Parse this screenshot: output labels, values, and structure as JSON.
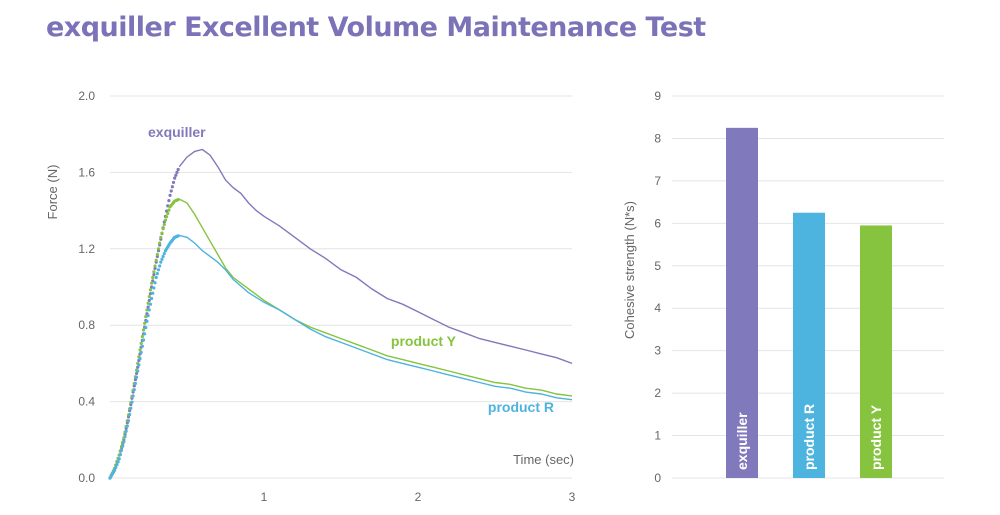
{
  "title": "exquiller Excellent Volume Maintenance Test",
  "colors": {
    "title": "#7b72b8",
    "exquiller": "#8079bb",
    "product_R": "#4db3df",
    "product_Y": "#86c33e",
    "grid": "#e4e4e4"
  },
  "chart_data": [
    {
      "type": "line",
      "xlabel": "Time (sec)",
      "ylabel": "Force (N)",
      "xlim": [
        0,
        3
      ],
      "ylim": [
        0,
        2
      ],
      "x_ticks": [
        1,
        2,
        3
      ],
      "y_ticks": [
        "0.0",
        "0.4",
        "0.8",
        "1.2",
        "1.6",
        "2.0"
      ],
      "grid": true,
      "series": [
        {
          "name": "exquiller",
          "color": "#8079bb",
          "points": [
            [
              0,
              0
            ],
            [
              0.03,
              0.05
            ],
            [
              0.06,
              0.12
            ],
            [
              0.09,
              0.2
            ],
            [
              0.12,
              0.32
            ],
            [
              0.15,
              0.45
            ],
            [
              0.18,
              0.58
            ],
            [
              0.21,
              0.72
            ],
            [
              0.24,
              0.86
            ],
            [
              0.27,
              1.0
            ],
            [
              0.3,
              1.13
            ],
            [
              0.33,
              1.25
            ],
            [
              0.36,
              1.37
            ],
            [
              0.39,
              1.48
            ],
            [
              0.42,
              1.57
            ],
            [
              0.45,
              1.63
            ],
            [
              0.5,
              1.68
            ],
            [
              0.55,
              1.71
            ],
            [
              0.6,
              1.72
            ],
            [
              0.65,
              1.69
            ],
            [
              0.7,
              1.63
            ],
            [
              0.75,
              1.56
            ],
            [
              0.8,
              1.52
            ],
            [
              0.85,
              1.49
            ],
            [
              0.9,
              1.44
            ],
            [
              0.95,
              1.4
            ],
            [
              1.0,
              1.37
            ],
            [
              1.1,
              1.32
            ],
            [
              1.2,
              1.26
            ],
            [
              1.3,
              1.2
            ],
            [
              1.4,
              1.15
            ],
            [
              1.5,
              1.09
            ],
            [
              1.6,
              1.05
            ],
            [
              1.7,
              0.99
            ],
            [
              1.8,
              0.94
            ],
            [
              1.9,
              0.91
            ],
            [
              2.0,
              0.87
            ],
            [
              2.1,
              0.83
            ],
            [
              2.2,
              0.79
            ],
            [
              2.3,
              0.76
            ],
            [
              2.4,
              0.73
            ],
            [
              2.5,
              0.71
            ],
            [
              2.6,
              0.69
            ],
            [
              2.7,
              0.67
            ],
            [
              2.8,
              0.65
            ],
            [
              2.9,
              0.63
            ],
            [
              3.0,
              0.6
            ]
          ]
        },
        {
          "name": "product Y",
          "color": "#86c33e",
          "points": [
            [
              0,
              0
            ],
            [
              0.03,
              0.05
            ],
            [
              0.06,
              0.12
            ],
            [
              0.09,
              0.21
            ],
            [
              0.12,
              0.33
            ],
            [
              0.15,
              0.46
            ],
            [
              0.18,
              0.6
            ],
            [
              0.21,
              0.74
            ],
            [
              0.24,
              0.88
            ],
            [
              0.27,
              1.02
            ],
            [
              0.3,
              1.14
            ],
            [
              0.33,
              1.26
            ],
            [
              0.36,
              1.35
            ],
            [
              0.39,
              1.42
            ],
            [
              0.42,
              1.45
            ],
            [
              0.45,
              1.46
            ],
            [
              0.5,
              1.44
            ],
            [
              0.55,
              1.38
            ],
            [
              0.6,
              1.31
            ],
            [
              0.65,
              1.24
            ],
            [
              0.7,
              1.17
            ],
            [
              0.75,
              1.1
            ],
            [
              0.8,
              1.05
            ],
            [
              0.9,
              0.99
            ],
            [
              1.0,
              0.93
            ],
            [
              1.1,
              0.88
            ],
            [
              1.2,
              0.83
            ],
            [
              1.3,
              0.79
            ],
            [
              1.4,
              0.76
            ],
            [
              1.5,
              0.73
            ],
            [
              1.6,
              0.7
            ],
            [
              1.7,
              0.67
            ],
            [
              1.8,
              0.64
            ],
            [
              1.9,
              0.62
            ],
            [
              2.0,
              0.6
            ],
            [
              2.1,
              0.58
            ],
            [
              2.2,
              0.56
            ],
            [
              2.3,
              0.54
            ],
            [
              2.4,
              0.52
            ],
            [
              2.5,
              0.5
            ],
            [
              2.6,
              0.49
            ],
            [
              2.7,
              0.47
            ],
            [
              2.8,
              0.46
            ],
            [
              2.9,
              0.44
            ],
            [
              3.0,
              0.43
            ]
          ]
        },
        {
          "name": "product R",
          "color": "#4db3df",
          "points": [
            [
              0,
              0
            ],
            [
              0.03,
              0.04
            ],
            [
              0.06,
              0.1
            ],
            [
              0.09,
              0.19
            ],
            [
              0.12,
              0.3
            ],
            [
              0.15,
              0.43
            ],
            [
              0.18,
              0.56
            ],
            [
              0.21,
              0.69
            ],
            [
              0.24,
              0.82
            ],
            [
              0.27,
              0.94
            ],
            [
              0.3,
              1.05
            ],
            [
              0.33,
              1.13
            ],
            [
              0.36,
              1.19
            ],
            [
              0.39,
              1.23
            ],
            [
              0.42,
              1.26
            ],
            [
              0.45,
              1.27
            ],
            [
              0.5,
              1.26
            ],
            [
              0.55,
              1.23
            ],
            [
              0.6,
              1.19
            ],
            [
              0.65,
              1.16
            ],
            [
              0.7,
              1.13
            ],
            [
              0.75,
              1.09
            ],
            [
              0.8,
              1.04
            ],
            [
              0.9,
              0.97
            ],
            [
              1.0,
              0.92
            ],
            [
              1.1,
              0.88
            ],
            [
              1.2,
              0.83
            ],
            [
              1.3,
              0.78
            ],
            [
              1.4,
              0.74
            ],
            [
              1.5,
              0.71
            ],
            [
              1.6,
              0.68
            ],
            [
              1.7,
              0.65
            ],
            [
              1.8,
              0.62
            ],
            [
              1.9,
              0.6
            ],
            [
              2.0,
              0.58
            ],
            [
              2.1,
              0.56
            ],
            [
              2.2,
              0.54
            ],
            [
              2.3,
              0.52
            ],
            [
              2.4,
              0.5
            ],
            [
              2.5,
              0.48
            ],
            [
              2.6,
              0.47
            ],
            [
              2.7,
              0.45
            ],
            [
              2.8,
              0.44
            ],
            [
              2.9,
              0.42
            ],
            [
              3.0,
              0.41
            ]
          ]
        }
      ],
      "annotations": [
        "exquiller",
        "product Y",
        "product R"
      ]
    },
    {
      "type": "bar",
      "ylabel": "Cohesive strength (N*s)",
      "ylim": [
        0,
        9
      ],
      "y_ticks": [
        0,
        1,
        2,
        3,
        4,
        5,
        6,
        7,
        8,
        9
      ],
      "grid": true,
      "categories": [
        "exquiller",
        "product R",
        "product Y"
      ],
      "values": [
        8.25,
        6.25,
        5.95
      ],
      "colors": [
        "#8079bb",
        "#4db3df",
        "#86c33e"
      ]
    }
  ]
}
